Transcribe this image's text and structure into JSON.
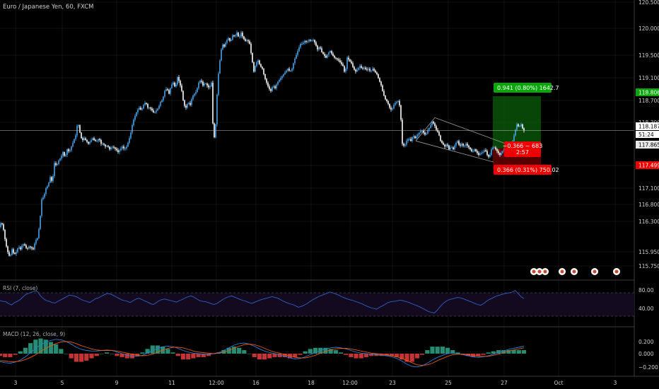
{
  "header": {
    "symbol_label": "Euro / Japanese Yen, 60, FXCM"
  },
  "colors": {
    "background": "#000000",
    "candle_up": "#4aa3e8",
    "candle_down": "#ffffff",
    "grid": "#222222",
    "current_line": "#bdbdbd",
    "profit_zone": "#0b5e0b",
    "loss_zone": "#6b0000",
    "profit_badge": "#0aa60a",
    "loss_badge": "#ee0000",
    "rsi_line": "#2d60c8",
    "rsi_band": "#140a20",
    "macd_line": "#2d7fd6",
    "signal_line": "#e85a1a",
    "hist_pos": "#2a9c80",
    "hist_neg": "#d93a3a",
    "price_label_bg": "#ffffff"
  },
  "price_axis": {
    "ticks": [
      "120.500",
      "120.000",
      "119.500",
      "119.100",
      "118.700",
      "118.300",
      "117.500",
      "117.100",
      "116.800",
      "116.300",
      "115.950",
      "115.750"
    ]
  },
  "price_labels": {
    "take_profit": "118.806",
    "current": "118.187",
    "countdown": "51:24",
    "entry": "117.865",
    "stop": "117.499"
  },
  "position_tool": {
    "profit_text": "0.941 (0.80%) 1642.7",
    "loss_text": "0.366 (0.31%) 750.02",
    "mid_text_1": "−0.366 ~ 683",
    "mid_text_2": "2:57"
  },
  "x_axis": {
    "labels": [
      "3",
      "5",
      "9",
      "11",
      "12:00",
      "16",
      "18",
      "12:00",
      "23",
      "25",
      "27",
      "Oct",
      "3"
    ]
  },
  "rsi": {
    "title": "RSI (7, close)",
    "axis_labels": [
      "80.00",
      "40.00"
    ]
  },
  "macd": {
    "title": "MACD (12, 26, close, 9)",
    "axis_labels": [
      "0.200",
      "0.000",
      "−0.200"
    ]
  },
  "event_icons": [
    "flag-icon",
    "flag-icon",
    "flag-icon",
    "flag-icon",
    "flag-icon",
    "flag-icon",
    "flag-icon"
  ],
  "chart_data": {
    "type": "candlestick",
    "title": "Euro / Japanese Yen, 60, FXCM",
    "xlabel": "",
    "ylabel": "",
    "ylim": [
      115.65,
      120.55
    ],
    "path": [
      [
        0,
        116.45
      ],
      [
        3,
        116.55
      ],
      [
        6,
        116.4
      ],
      [
        9,
        116.15
      ],
      [
        12,
        116.0
      ],
      [
        15,
        115.9
      ],
      [
        18,
        116.05
      ],
      [
        21,
        115.95
      ],
      [
        24,
        116.0
      ],
      [
        27,
        116.1
      ],
      [
        30,
        116.05
      ],
      [
        33,
        116.15
      ],
      [
        36,
        116.12
      ],
      [
        39,
        116.05
      ],
      [
        42,
        116.1
      ],
      [
        45,
        116.08
      ],
      [
        48,
        116.05
      ],
      [
        51,
        116.2
      ],
      [
        54,
        116.25
      ],
      [
        57,
        116.5
      ],
      [
        60,
        116.95
      ],
      [
        63,
        117.0
      ],
      [
        66,
        117.15
      ],
      [
        69,
        117.2
      ],
      [
        72,
        117.35
      ],
      [
        75,
        117.25
      ],
      [
        78,
        117.6
      ],
      [
        81,
        117.55
      ],
      [
        84,
        117.65
      ],
      [
        87,
        117.7
      ],
      [
        90,
        117.8
      ],
      [
        93,
        117.7
      ],
      [
        96,
        117.85
      ],
      [
        99,
        117.8
      ],
      [
        102,
        117.9
      ],
      [
        105,
        118.0
      ],
      [
        108,
        118.1
      ],
      [
        111,
        118.35
      ],
      [
        114,
        118.15
      ],
      [
        117,
        118.0
      ],
      [
        120,
        118.05
      ],
      [
        123,
        118.0
      ],
      [
        126,
        117.95
      ],
      [
        129,
        118.0
      ],
      [
        132,
        118.05
      ],
      [
        135,
        118.0
      ],
      [
        138,
        118.0
      ],
      [
        141,
        118.05
      ],
      [
        144,
        117.95
      ],
      [
        147,
        117.95
      ],
      [
        150,
        117.9
      ],
      [
        153,
        117.92
      ],
      [
        156,
        117.85
      ],
      [
        159,
        117.9
      ],
      [
        162,
        117.88
      ],
      [
        165,
        117.85
      ],
      [
        168,
        117.8
      ],
      [
        171,
        117.85
      ],
      [
        174,
        117.9
      ],
      [
        177,
        117.85
      ],
      [
        180,
        117.9
      ],
      [
        183,
        118.0
      ],
      [
        186,
        118.15
      ],
      [
        189,
        118.35
      ],
      [
        192,
        118.45
      ],
      [
        195,
        118.55
      ],
      [
        198,
        118.6
      ],
      [
        201,
        118.55
      ],
      [
        204,
        118.65
      ],
      [
        207,
        118.7
      ],
      [
        210,
        118.6
      ],
      [
        213,
        118.6
      ],
      [
        216,
        118.55
      ],
      [
        219,
        118.5
      ],
      [
        222,
        118.55
      ],
      [
        225,
        118.6
      ],
      [
        228,
        118.7
      ],
      [
        231,
        118.75
      ],
      [
        234,
        118.9
      ],
      [
        237,
        118.95
      ],
      [
        240,
        118.85
      ],
      [
        243,
        119.0
      ],
      [
        246,
        119.05
      ],
      [
        249,
        118.95
      ],
      [
        252,
        119.15
      ],
      [
        255,
        119.05
      ],
      [
        258,
        118.9
      ],
      [
        261,
        118.65
      ],
      [
        264,
        118.6
      ],
      [
        267,
        118.7
      ],
      [
        270,
        118.65
      ],
      [
        273,
        118.8
      ],
      [
        276,
        118.85
      ],
      [
        279,
        118.9
      ],
      [
        282,
        119.05
      ],
      [
        285,
        119.1
      ],
      [
        288,
        119.0
      ],
      [
        291,
        119.05
      ],
      [
        294,
        119.0
      ],
      [
        297,
        118.95
      ],
      [
        300,
        119.05
      ],
      [
        303,
        117.95
      ],
      [
        306,
        118.3
      ],
      [
        309,
        119.1
      ],
      [
        312,
        119.45
      ],
      [
        315,
        119.75
      ],
      [
        318,
        119.7
      ],
      [
        321,
        119.8
      ],
      [
        324,
        119.85
      ],
      [
        327,
        119.78
      ],
      [
        330,
        119.9
      ],
      [
        333,
        119.88
      ],
      [
        336,
        119.95
      ],
      [
        339,
        119.85
      ],
      [
        342,
        119.95
      ],
      [
        345,
        119.85
      ],
      [
        348,
        119.8
      ],
      [
        351,
        119.82
      ],
      [
        354,
        119.75
      ],
      [
        357,
        119.5
      ],
      [
        360,
        119.25
      ],
      [
        363,
        119.4
      ],
      [
        366,
        119.45
      ],
      [
        369,
        119.35
      ],
      [
        372,
        119.3
      ],
      [
        375,
        119.15
      ],
      [
        378,
        119.05
      ],
      [
        381,
        118.95
      ],
      [
        384,
        118.9
      ],
      [
        387,
        119.0
      ],
      [
        390,
        118.95
      ],
      [
        393,
        119.05
      ],
      [
        396,
        119.1
      ],
      [
        399,
        119.15
      ],
      [
        402,
        119.2
      ],
      [
        405,
        119.25
      ],
      [
        408,
        119.3
      ],
      [
        411,
        119.25
      ],
      [
        414,
        119.3
      ],
      [
        417,
        119.45
      ],
      [
        420,
        119.55
      ],
      [
        423,
        119.65
      ],
      [
        426,
        119.75
      ],
      [
        429,
        119.75
      ],
      [
        432,
        119.8
      ],
      [
        435,
        119.78
      ],
      [
        438,
        119.82
      ],
      [
        441,
        119.8
      ],
      [
        444,
        119.82
      ],
      [
        447,
        119.75
      ],
      [
        450,
        119.65
      ],
      [
        453,
        119.7
      ],
      [
        456,
        119.6
      ],
      [
        459,
        119.55
      ],
      [
        462,
        119.5
      ],
      [
        465,
        119.58
      ],
      [
        468,
        119.62
      ],
      [
        471,
        119.55
      ],
      [
        474,
        119.5
      ],
      [
        477,
        119.48
      ],
      [
        480,
        119.45
      ],
      [
        483,
        119.4
      ],
      [
        486,
        119.35
      ],
      [
        489,
        119.2
      ],
      [
        492,
        119.5
      ],
      [
        495,
        119.45
      ],
      [
        498,
        119.4
      ],
      [
        501,
        119.3
      ],
      [
        504,
        119.25
      ],
      [
        507,
        119.3
      ],
      [
        510,
        119.35
      ],
      [
        513,
        119.3
      ],
      [
        516,
        119.32
      ],
      [
        519,
        119.28
      ],
      [
        522,
        119.3
      ],
      [
        525,
        119.25
      ],
      [
        528,
        119.3
      ],
      [
        531,
        119.25
      ],
      [
        534,
        119.2
      ],
      [
        537,
        119.1
      ],
      [
        540,
        119.0
      ],
      [
        543,
        118.85
      ],
      [
        546,
        118.75
      ],
      [
        549,
        118.7
      ],
      [
        552,
        118.6
      ],
      [
        555,
        118.55
      ],
      [
        558,
        118.65
      ],
      [
        561,
        118.7
      ],
      [
        564,
        118.72
      ],
      [
        567,
        118.6
      ],
      [
        570,
        117.95
      ],
      [
        573,
        117.9
      ],
      [
        576,
        118.0
      ],
      [
        579,
        118.05
      ],
      [
        582,
        118.0
      ],
      [
        585,
        118.1
      ],
      [
        588,
        118.05
      ],
      [
        591,
        118.1
      ],
      [
        594,
        118.15
      ],
      [
        597,
        118.2
      ],
      [
        600,
        118.15
      ],
      [
        603,
        118.1
      ],
      [
        606,
        118.2
      ],
      [
        609,
        118.25
      ],
      [
        612,
        118.35
      ],
      [
        615,
        118.3
      ],
      [
        618,
        118.2
      ],
      [
        621,
        118.15
      ],
      [
        624,
        118.0
      ],
      [
        627,
        117.95
      ],
      [
        630,
        117.9
      ],
      [
        633,
        117.95
      ],
      [
        636,
        117.85
      ],
      [
        639,
        117.9
      ],
      [
        642,
        117.85
      ],
      [
        645,
        117.95
      ],
      [
        648,
        118.0
      ],
      [
        651,
        117.9
      ],
      [
        654,
        117.95
      ],
      [
        657,
        117.9
      ],
      [
        660,
        117.95
      ],
      [
        663,
        117.9
      ],
      [
        666,
        117.85
      ],
      [
        669,
        117.8
      ],
      [
        672,
        117.85
      ],
      [
        675,
        117.8
      ],
      [
        678,
        117.75
      ],
      [
        681,
        117.78
      ],
      [
        684,
        117.8
      ],
      [
        687,
        117.85
      ],
      [
        690,
        117.75
      ],
      [
        693,
        117.7
      ],
      [
        696,
        117.85
      ],
      [
        699,
        117.9
      ],
      [
        702,
        117.85
      ],
      [
        705,
        117.8
      ],
      [
        708,
        117.75
      ],
      [
        711,
        117.8
      ],
      [
        714,
        117.85
      ],
      [
        717,
        117.8
      ],
      [
        720,
        117.88
      ],
      [
        723,
        117.92
      ],
      [
        726,
        118.0
      ],
      [
        729,
        118.15
      ],
      [
        732,
        118.3
      ],
      [
        735,
        118.25
      ],
      [
        738,
        118.3
      ],
      [
        741,
        118.19
      ]
    ],
    "channel_upper": [
      [
        615,
        118.42
      ],
      [
        722,
        117.92
      ]
    ],
    "channel_lower": [
      [
        588,
        118.0
      ],
      [
        698,
        117.62
      ]
    ],
    "position": {
      "x_start": 697,
      "x_end": 765,
      "take_profit": 118.806,
      "entry": 117.865,
      "stop": 117.499
    },
    "current_price": 118.187,
    "rsi": {
      "ylim": [
        0,
        100
      ],
      "overbought": 80,
      "oversold": 20,
      "values": [
        60,
        58,
        57,
        52,
        49,
        55,
        58,
        63,
        70,
        76,
        79,
        82,
        85,
        83,
        72,
        65,
        60,
        58,
        55,
        54,
        58,
        62,
        66,
        70,
        74,
        73,
        71,
        68,
        63,
        60,
        58,
        55,
        60,
        65,
        67,
        71,
        75,
        78,
        77,
        74,
        70,
        66,
        62,
        60,
        58,
        55,
        60,
        64,
        66,
        63,
        59,
        56,
        52,
        50,
        55,
        60,
        63,
        64,
        62,
        60,
        58,
        56,
        60,
        63,
        67,
        70,
        72,
        69,
        64,
        60,
        58,
        57,
        55,
        52,
        50,
        53,
        58,
        63,
        67,
        70,
        72,
        69,
        66,
        63,
        60,
        58,
        55,
        53,
        56,
        59,
        62,
        64,
        66,
        68,
        70,
        68,
        66,
        62,
        58,
        55,
        52,
        50,
        47,
        43,
        45,
        48,
        52,
        57,
        62,
        66,
        70,
        73,
        76,
        79,
        82,
        80,
        77,
        74,
        70,
        67,
        64,
        62,
        60,
        57,
        55,
        52,
        48,
        45,
        42,
        40,
        38,
        42,
        46,
        50,
        55,
        57,
        58,
        59,
        61,
        60,
        58,
        56,
        53,
        50,
        47,
        44,
        40,
        36,
        32,
        30,
        28,
        35,
        44,
        52,
        58,
        62,
        64,
        66,
        68,
        67,
        65,
        62,
        59,
        56,
        53,
        50,
        48,
        52,
        58,
        63,
        66,
        70,
        73,
        75,
        77,
        79,
        80,
        82,
        86,
        78,
        70,
        65
      ]
    },
    "macd": {
      "ylim": [
        -0.32,
        0.3
      ],
      "macd_line": [
        -0.15,
        -0.17,
        -0.18,
        -0.16,
        -0.12,
        -0.06,
        0.02,
        0.1,
        0.17,
        0.22,
        0.25,
        0.27,
        0.26,
        0.23,
        0.18,
        0.12,
        0.08,
        0.06,
        0.05,
        0.05,
        0.06,
        0.07,
        0.06,
        0.03,
        0.0,
        -0.03,
        -0.05,
        -0.05,
        -0.03,
        0.01,
        0.06,
        0.1,
        0.13,
        0.14,
        0.13,
        0.1,
        0.06,
        0.03,
        0.01,
        0.0,
        -0.01,
        -0.01,
        0.0,
        0.02,
        0.06,
        0.11,
        0.16,
        0.19,
        0.2,
        0.18,
        0.14,
        0.09,
        0.05,
        0.02,
        0.0,
        -0.02,
        -0.05,
        -0.08,
        -0.1,
        -0.09,
        -0.06,
        -0.02,
        0.02,
        0.06,
        0.09,
        0.11,
        0.12,
        0.11,
        0.09,
        0.06,
        0.03,
        0.01,
        0.0,
        -0.01,
        -0.02,
        -0.03,
        -0.04,
        -0.06,
        -0.09,
        -0.14,
        -0.2,
        -0.24,
        -0.25,
        -0.23,
        -0.18,
        -0.12,
        -0.07,
        -0.03,
        0.0,
        0.01,
        0.0,
        -0.02,
        -0.04,
        -0.06,
        -0.07,
        -0.06,
        -0.04,
        -0.01,
        0.02,
        0.05,
        0.08,
        0.1,
        0.12,
        0.14
      ],
      "signal_line": [
        -0.13,
        -0.14,
        -0.15,
        -0.15,
        -0.14,
        -0.11,
        -0.07,
        -0.02,
        0.04,
        0.1,
        0.15,
        0.19,
        0.22,
        0.23,
        0.22,
        0.19,
        0.15,
        0.12,
        0.09,
        0.07,
        0.06,
        0.06,
        0.06,
        0.05,
        0.03,
        0.01,
        -0.01,
        -0.03,
        -0.04,
        -0.03,
        -0.01,
        0.03,
        0.07,
        0.1,
        0.12,
        0.12,
        0.11,
        0.08,
        0.05,
        0.03,
        0.02,
        0.01,
        0.0,
        0.01,
        0.03,
        0.06,
        0.1,
        0.14,
        0.17,
        0.18,
        0.17,
        0.14,
        0.1,
        0.06,
        0.03,
        0.01,
        -0.02,
        -0.04,
        -0.07,
        -0.08,
        -0.08,
        -0.06,
        -0.03,
        0.01,
        0.04,
        0.07,
        0.09,
        0.1,
        0.1,
        0.09,
        0.07,
        0.05,
        0.03,
        0.01,
        0.0,
        -0.01,
        -0.02,
        -0.04,
        -0.06,
        -0.09,
        -0.13,
        -0.17,
        -0.21,
        -0.22,
        -0.21,
        -0.18,
        -0.13,
        -0.09,
        -0.05,
        -0.02,
        -0.01,
        -0.01,
        -0.02,
        -0.03,
        -0.05,
        -0.05,
        -0.05,
        -0.03,
        -0.01,
        0.02,
        0.05,
        0.07,
        0.09,
        0.11
      ]
    }
  }
}
